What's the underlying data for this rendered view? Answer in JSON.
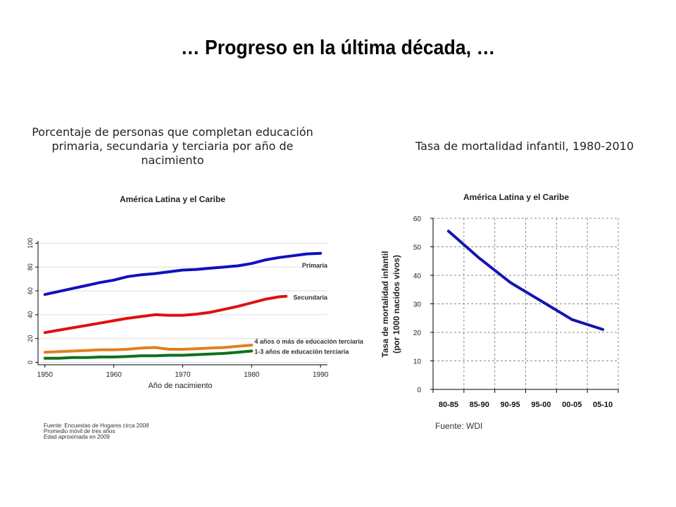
{
  "page": {
    "title": "… Progreso en la última década, …",
    "left_subtitle": "Porcentaje de personas que completan educación primaria, secundaria y terciaria por año de nacimiento",
    "right_subtitle": "Tasa de mortalidad infantil, 1980-2010",
    "left_sources": [
      "Fuente: Encuestas de Hogares circa 2008",
      "Promedio móvil de tres años",
      "Edad aproximada en 2009"
    ],
    "right_source": "Fuente: WDI"
  },
  "chart_data": [
    {
      "type": "line",
      "title": "América Latina y el Caribe",
      "xlabel": "Año de nacimiento",
      "ylabel": "",
      "xlim": [
        1949,
        1991
      ],
      "ylim": [
        -2,
        102
      ],
      "xticks": [
        1950,
        1960,
        1970,
        1980,
        1990
      ],
      "yticks": [
        0,
        20,
        40,
        60,
        80,
        100
      ],
      "grid": "horizontal",
      "series": [
        {
          "name": "Primaria",
          "color": "#1010c0",
          "x": [
            1950,
            1952,
            1954,
            1956,
            1958,
            1960,
            1962,
            1964,
            1966,
            1968,
            1970,
            1972,
            1974,
            1976,
            1978,
            1980,
            1982,
            1984,
            1986,
            1988,
            1990
          ],
          "y": [
            57,
            59.5,
            62,
            64.5,
            67,
            69,
            72,
            73.5,
            74.5,
            76,
            77.5,
            78,
            79,
            80,
            81,
            83,
            86,
            88,
            89.5,
            91,
            91.5
          ]
        },
        {
          "name": "Secundaria",
          "color": "#e01010",
          "x": [
            1950,
            1952,
            1954,
            1956,
            1958,
            1960,
            1962,
            1964,
            1966,
            1968,
            1970,
            1972,
            1974,
            1976,
            1978,
            1980,
            1982,
            1984,
            1985
          ],
          "y": [
            25,
            27,
            29,
            31,
            33,
            35,
            37,
            38.5,
            40,
            39.5,
            39.5,
            40.5,
            42,
            44.5,
            47,
            50,
            53,
            55,
            55.5
          ]
        },
        {
          "name": "4 años o más de educación terciaria",
          "color": "#e08020",
          "x": [
            1950,
            1952,
            1954,
            1956,
            1958,
            1960,
            1962,
            1964,
            1966,
            1968,
            1970,
            1972,
            1974,
            1976,
            1978,
            1980
          ],
          "y": [
            8.5,
            9,
            9.5,
            10,
            10.5,
            10.5,
            11,
            12,
            12.5,
            11,
            11,
            11.5,
            12,
            12.5,
            13.5,
            14.5
          ]
        },
        {
          "name": "1-3 años de educación terciaria",
          "color": "#10701a",
          "x": [
            1950,
            1952,
            1954,
            1956,
            1958,
            1960,
            1962,
            1964,
            1966,
            1968,
            1970,
            1972,
            1974,
            1976,
            1978,
            1980
          ],
          "y": [
            3.5,
            3.5,
            4,
            4,
            4.5,
            4.5,
            5,
            5.5,
            5.5,
            6,
            6,
            6.5,
            7,
            7.5,
            8.5,
            9.5
          ]
        }
      ]
    },
    {
      "type": "line",
      "title": "América Latina y el Caribe",
      "xlabel": "",
      "ylabel": "Tasa de mortalidad infantil (por 1000 nacidos vivos)",
      "categories": [
        "80-85",
        "85-90",
        "90-95",
        "95-00",
        "00-05",
        "05-10"
      ],
      "ylim": [
        0,
        60
      ],
      "yticks": [
        0,
        10,
        20,
        30,
        40,
        50,
        60
      ],
      "grid": "dashed",
      "series": [
        {
          "name": "",
          "color": "#1515b0",
          "values": [
            55.5,
            46,
            37.5,
            31,
            24.5,
            21
          ]
        }
      ]
    }
  ]
}
